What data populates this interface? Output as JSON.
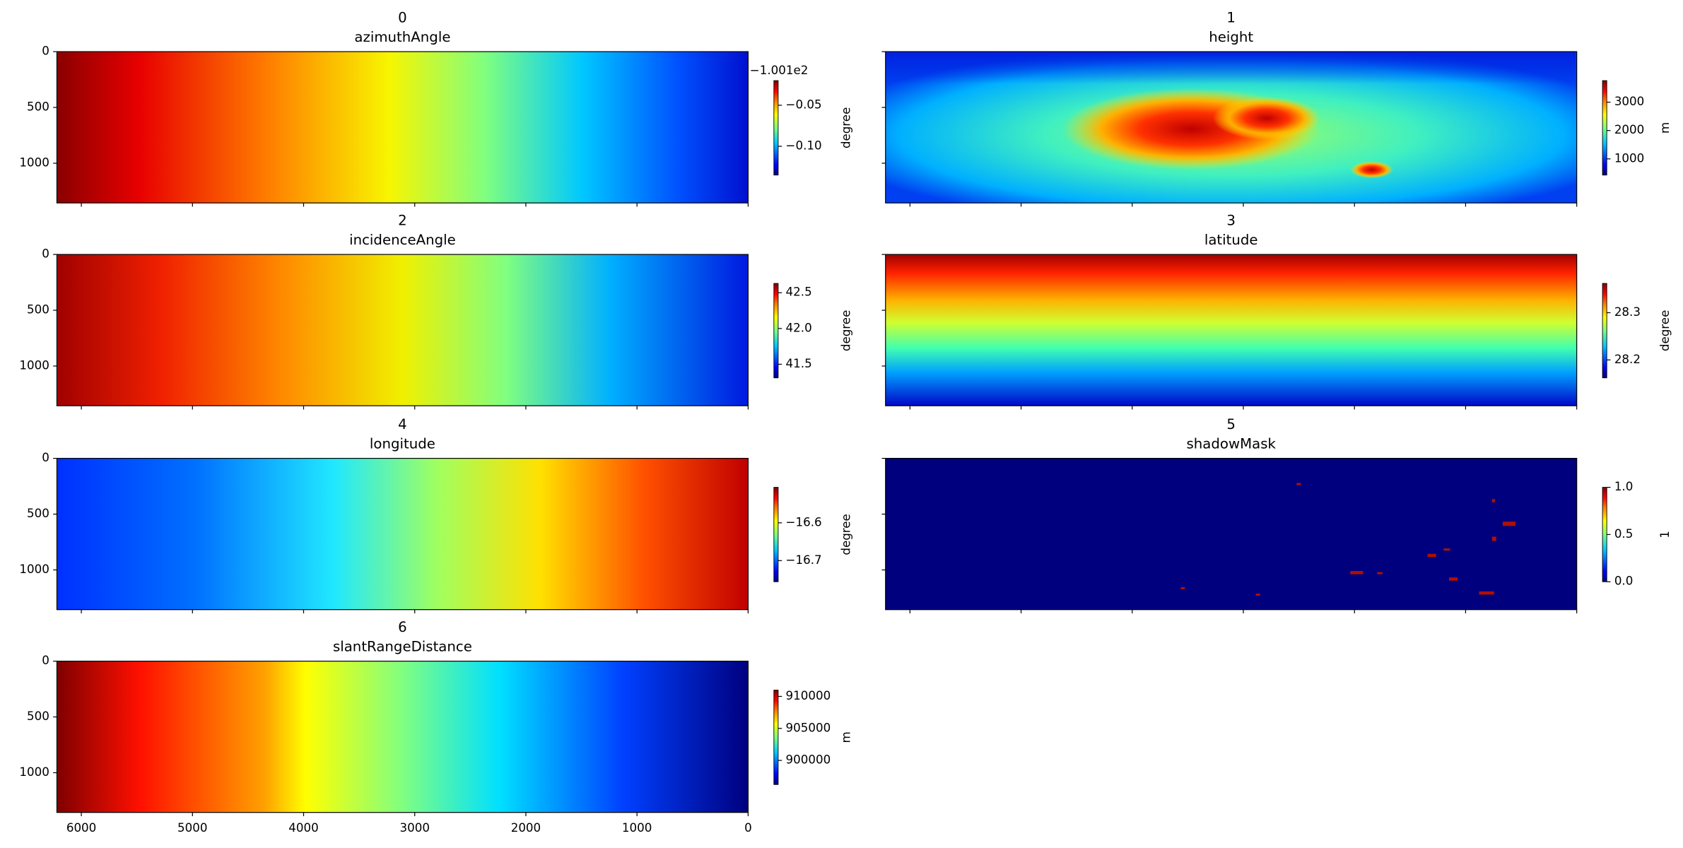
{
  "chart_data": [
    {
      "type": "image",
      "title": "0",
      "subtitle": "azimuthAngle",
      "xlim": [
        6220,
        0
      ],
      "ylim": [
        1356,
        0
      ],
      "xticks": [
        6000,
        5000,
        4000,
        3000,
        2000,
        1000,
        0
      ],
      "yticks": [
        0,
        500,
        1000
      ],
      "colorbar": {
        "label": "degree",
        "lim": [
          -0.135,
          -0.02
        ],
        "ticks": [
          {
            "value": -0.05,
            "label": "−0.05"
          },
          {
            "value": -0.1,
            "label": "−0.10"
          }
        ],
        "offset_text": "−1.001e2"
      }
    },
    {
      "type": "image",
      "title": "1",
      "subtitle": "height",
      "xlim": [
        6220,
        0
      ],
      "ylim": [
        1356,
        0
      ],
      "xticks": [
        6000,
        5000,
        4000,
        3000,
        2000,
        1000,
        0
      ],
      "yticks": [
        0,
        500,
        1000
      ],
      "colorbar": {
        "label": "m",
        "lim": [
          430,
          3760
        ],
        "ticks": [
          1000,
          2000,
          3000
        ]
      }
    },
    {
      "type": "image",
      "title": "2",
      "subtitle": "incidenceAngle",
      "xlim": [
        6220,
        0
      ],
      "ylim": [
        1356,
        0
      ],
      "xticks": [
        6000,
        5000,
        4000,
        3000,
        2000,
        1000,
        0
      ],
      "yticks": [
        0,
        500,
        1000
      ],
      "colorbar": {
        "label": "degree",
        "lim": [
          41.31,
          42.63
        ],
        "ticks": [
          41.5,
          {
            "value": 42,
            "label": "42.0"
          },
          42.5
        ]
      }
    },
    {
      "type": "image",
      "title": "3",
      "subtitle": "latitude",
      "xlim": [
        6220,
        0
      ],
      "ylim": [
        1356,
        0
      ],
      "xticks": [
        6000,
        5000,
        4000,
        3000,
        2000,
        1000,
        0
      ],
      "yticks": [
        0,
        500,
        1000
      ],
      "colorbar": {
        "label": "degree",
        "lim": [
          28.162,
          28.362
        ],
        "ticks": [
          28.2,
          28.3
        ]
      }
    },
    {
      "type": "image",
      "title": "4",
      "subtitle": "longitude",
      "xlim": [
        6220,
        0
      ],
      "ylim": [
        1356,
        0
      ],
      "xticks": [
        6000,
        5000,
        4000,
        3000,
        2000,
        1000,
        0
      ],
      "yticks": [
        0,
        500,
        1000
      ],
      "colorbar": {
        "label": "degree",
        "lim": [
          -16.756,
          -16.506
        ],
        "ticks": [
          {
            "value": -16.7,
            "label": "−16.7"
          },
          {
            "value": -16.6,
            "label": "−16.6"
          }
        ]
      }
    },
    {
      "type": "image",
      "title": "5",
      "subtitle": "shadowMask",
      "xlim": [
        6220,
        0
      ],
      "ylim": [
        1356,
        0
      ],
      "xticks": [
        6000,
        5000,
        4000,
        3000,
        2000,
        1000,
        0
      ],
      "yticks": [
        0,
        500,
        1000
      ],
      "colorbar": {
        "label": "1",
        "lim": [
          0,
          1
        ],
        "ticks": [
          {
            "value": 0,
            "label": "0.0"
          },
          0.5,
          {
            "value": 1,
            "label": "1.0"
          }
        ]
      }
    },
    {
      "type": "image",
      "title": "6",
      "subtitle": "slantRangeDistance",
      "xlim": [
        6220,
        0
      ],
      "ylim": [
        1356,
        0
      ],
      "xticks": [
        6000,
        5000,
        4000,
        3000,
        2000,
        1000,
        0
      ],
      "yticks": [
        0,
        500,
        1000
      ],
      "colorbar": {
        "label": "m",
        "lim": [
          896230,
          910980
        ],
        "ticks": [
          900000,
          905000,
          910000
        ]
      }
    }
  ]
}
